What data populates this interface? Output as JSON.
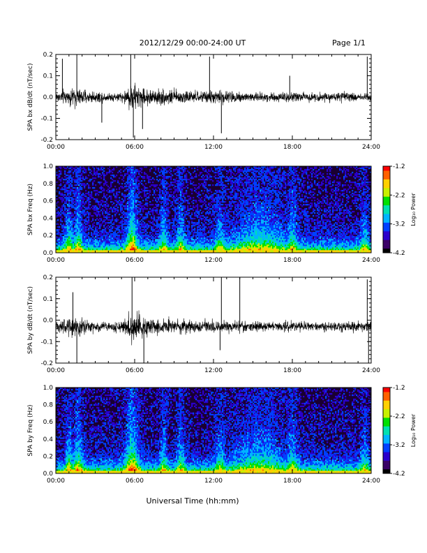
{
  "header": {
    "title": "2012/12/29  00:00-24:00 UT",
    "page": "Page 1/1"
  },
  "xlabel": "Universal Time (hh:mm)",
  "chart_data": [
    {
      "type": "line",
      "ylabel": "SPA bx dB/dt (nT/sec)",
      "xlim": [
        0,
        24
      ],
      "ylim": [
        -0.2,
        0.2
      ],
      "xticks": [
        "00:00",
        "06:00",
        "12:00",
        "18:00",
        "24:00"
      ],
      "yticks": [
        "-0.2",
        "-0.1",
        "0.0",
        "0.1",
        "0.2"
      ],
      "baseline": 0.0,
      "envelope": [
        {
          "x": 0,
          "amp": 0.05
        },
        {
          "x": 1,
          "amp": 0.07
        },
        {
          "x": 1.5,
          "amp": 0.09
        },
        {
          "x": 2,
          "amp": 0.06
        },
        {
          "x": 3,
          "amp": 0.05
        },
        {
          "x": 4,
          "amp": 0.04
        },
        {
          "x": 5,
          "amp": 0.04
        },
        {
          "x": 5.5,
          "amp": 0.09
        },
        {
          "x": 5.8,
          "amp": 0.14
        },
        {
          "x": 6.5,
          "amp": 0.08
        },
        {
          "x": 7.5,
          "amp": 0.07
        },
        {
          "x": 8.5,
          "amp": 0.07
        },
        {
          "x": 9.5,
          "amp": 0.06
        },
        {
          "x": 11,
          "amp": 0.05
        },
        {
          "x": 12.5,
          "amp": 0.06
        },
        {
          "x": 14,
          "amp": 0.05
        },
        {
          "x": 16,
          "amp": 0.04
        },
        {
          "x": 18,
          "amp": 0.045
        },
        {
          "x": 20,
          "amp": 0.04
        },
        {
          "x": 22,
          "amp": 0.04
        },
        {
          "x": 24,
          "amp": 0.04
        }
      ],
      "spikes": [
        {
          "x": 0.5,
          "v": 0.18
        },
        {
          "x": 1.6,
          "v": 0.21
        },
        {
          "x": 3.5,
          "v": -0.12
        },
        {
          "x": 5.7,
          "v": 0.2
        },
        {
          "x": 5.9,
          "v": -0.19
        },
        {
          "x": 6.6,
          "v": -0.15
        },
        {
          "x": 11.7,
          "v": 0.19
        },
        {
          "x": 12.6,
          "v": -0.17
        },
        {
          "x": 17.8,
          "v": 0.1
        },
        {
          "x": 23.7,
          "v": 0.19
        }
      ]
    },
    {
      "type": "heatmap",
      "ylabel": "SPA bx Freq (Hz)",
      "xlim": [
        0,
        24
      ],
      "ylim": [
        0,
        1.0
      ],
      "xticks": [
        "00:00",
        "06:00",
        "12:00",
        "18:00",
        "24:00"
      ],
      "yticks": [
        "0.0",
        "0.2",
        "0.4",
        "0.6",
        "0.8",
        "1.0"
      ],
      "colorbar": {
        "label": "Log₁₀ Power",
        "range": [
          -4.2,
          -1.2
        ],
        "ticks": [
          "-1.2",
          "-2.2",
          "-3.2",
          "-4.2"
        ],
        "colors": [
          "#000000",
          "#3a0066",
          "#2a00cc",
          "#0040ff",
          "#00b4ff",
          "#00e0b0",
          "#00e000",
          "#c8f000",
          "#ffd000",
          "#ff6000",
          "#ff0000"
        ]
      },
      "activity": [
        {
          "x": 1.0,
          "w": 0.3,
          "s": 0.6
        },
        {
          "x": 1.7,
          "w": 0.3,
          "s": 0.7
        },
        {
          "x": 5.8,
          "w": 0.4,
          "s": 1.0
        },
        {
          "x": 8.2,
          "w": 0.3,
          "s": 0.6
        },
        {
          "x": 9.5,
          "w": 0.3,
          "s": 0.6
        },
        {
          "x": 12.5,
          "w": 0.4,
          "s": 0.5
        },
        {
          "x": 15.5,
          "w": 2.0,
          "s": 0.55
        },
        {
          "x": 18.0,
          "w": 0.4,
          "s": 0.6
        },
        {
          "x": 23.5,
          "w": 0.3,
          "s": 0.5
        }
      ]
    },
    {
      "type": "line",
      "ylabel": "SPA by dB/dt (nT/sec)",
      "xlim": [
        0,
        24
      ],
      "ylim": [
        -0.2,
        0.2
      ],
      "xticks": [
        "00:00",
        "06:00",
        "12:00",
        "18:00",
        "24:00"
      ],
      "yticks": [
        "-0.2",
        "-0.1",
        "0.0",
        "0.1",
        "0.2"
      ],
      "baseline": -0.03,
      "envelope": [
        {
          "x": 0,
          "amp": 0.05
        },
        {
          "x": 1,
          "amp": 0.08
        },
        {
          "x": 1.5,
          "amp": 0.1
        },
        {
          "x": 2,
          "amp": 0.07
        },
        {
          "x": 3,
          "amp": 0.05
        },
        {
          "x": 4,
          "amp": 0.04
        },
        {
          "x": 5,
          "amp": 0.05
        },
        {
          "x": 5.5,
          "amp": 0.1
        },
        {
          "x": 5.8,
          "amp": 0.15
        },
        {
          "x": 6.5,
          "amp": 0.1
        },
        {
          "x": 7.5,
          "amp": 0.08
        },
        {
          "x": 8.5,
          "amp": 0.07
        },
        {
          "x": 9.5,
          "amp": 0.06
        },
        {
          "x": 11,
          "amp": 0.05
        },
        {
          "x": 12.5,
          "amp": 0.06
        },
        {
          "x": 14,
          "amp": 0.05
        },
        {
          "x": 16,
          "amp": 0.04
        },
        {
          "x": 18,
          "amp": 0.045
        },
        {
          "x": 20,
          "amp": 0.04
        },
        {
          "x": 22,
          "amp": 0.04
        },
        {
          "x": 24,
          "amp": 0.045
        }
      ],
      "spikes": [
        {
          "x": 1.3,
          "v": 0.13
        },
        {
          "x": 1.6,
          "v": -0.21
        },
        {
          "x": 5.8,
          "v": 0.2
        },
        {
          "x": 6.7,
          "v": -0.2
        },
        {
          "x": 12.6,
          "v": 0.2
        },
        {
          "x": 14.0,
          "v": 0.2
        },
        {
          "x": 12.5,
          "v": -0.14
        },
        {
          "x": 23.7,
          "v": 0.19
        },
        {
          "x": 23.8,
          "v": -0.2
        }
      ]
    },
    {
      "type": "heatmap",
      "ylabel": "SPA by Freq (Hz)",
      "xlim": [
        0,
        24
      ],
      "ylim": [
        0,
        1.0
      ],
      "xticks": [
        "00:00",
        "06:00",
        "12:00",
        "18:00",
        "24:00"
      ],
      "yticks": [
        "0.0",
        "0.2",
        "0.4",
        "0.6",
        "0.8",
        "1.0"
      ],
      "colorbar": {
        "label": "Log₁₀ Power",
        "range": [
          -4.2,
          -1.2
        ],
        "ticks": [
          "-1.2",
          "-2.2",
          "-3.2",
          "-4.2"
        ],
        "colors": [
          "#000000",
          "#3a0066",
          "#2a00cc",
          "#0040ff",
          "#00b4ff",
          "#00e0b0",
          "#00e000",
          "#c8f000",
          "#ffd000",
          "#ff6000",
          "#ff0000"
        ]
      },
      "activity": [
        {
          "x": 1.0,
          "w": 0.3,
          "s": 0.6
        },
        {
          "x": 1.7,
          "w": 0.4,
          "s": 0.7
        },
        {
          "x": 5.8,
          "w": 0.5,
          "s": 1.0
        },
        {
          "x": 8.2,
          "w": 0.3,
          "s": 0.6
        },
        {
          "x": 9.5,
          "w": 0.3,
          "s": 0.55
        },
        {
          "x": 12.5,
          "w": 0.4,
          "s": 0.5
        },
        {
          "x": 15.5,
          "w": 2.0,
          "s": 0.55
        },
        {
          "x": 18.0,
          "w": 0.4,
          "s": 0.6
        },
        {
          "x": 23.5,
          "w": 0.3,
          "s": 0.5
        }
      ]
    }
  ]
}
